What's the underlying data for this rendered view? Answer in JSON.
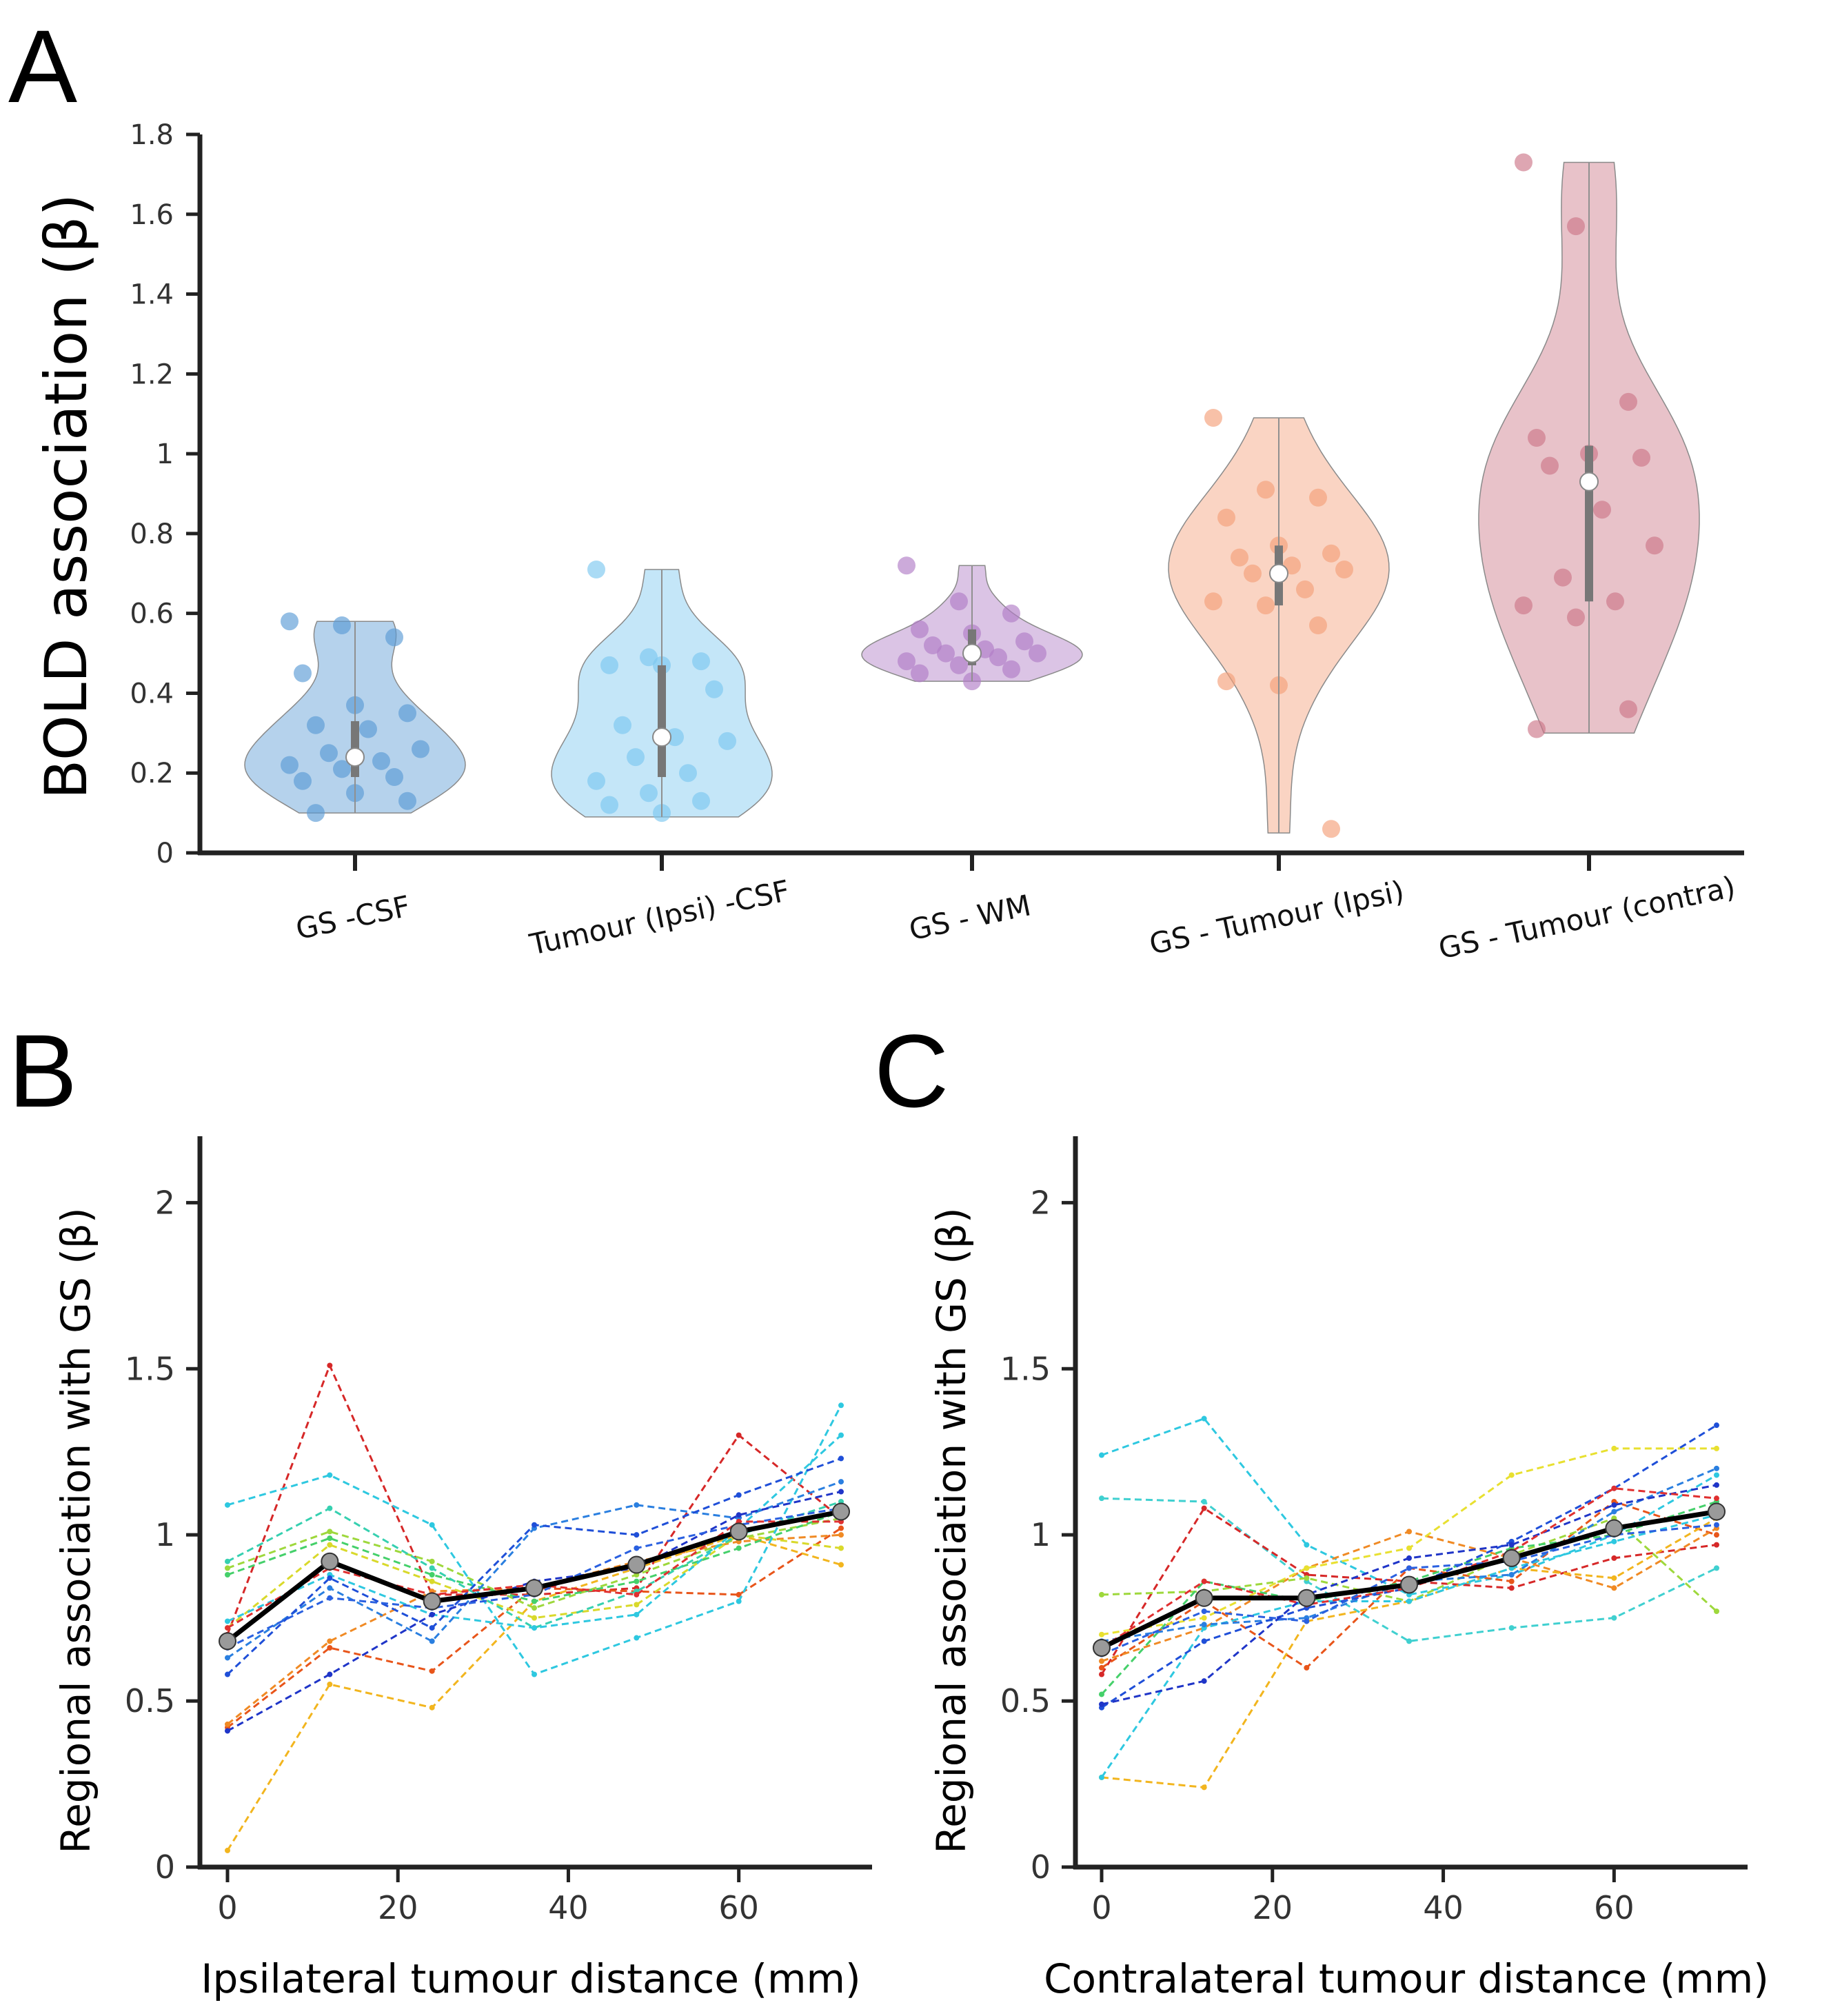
{
  "panels": {
    "a": "A",
    "b": "B",
    "c": "C"
  },
  "chart_data": [
    {
      "type": "violin",
      "panel": "A",
      "ylabel": "BOLD association (β)",
      "ylim": [
        0,
        1.8
      ],
      "yticks": [
        "0",
        "0.2",
        "0.4",
        "0.6",
        "0.8",
        "1",
        "1.2",
        "1.4",
        "1.6",
        "1.8"
      ],
      "groups": [
        {
          "label": "GS -CSF",
          "color": "#5b9bd5",
          "median": 0.24,
          "q1": 0.19,
          "q3": 0.33,
          "min": 0.1,
          "max": 0.58,
          "points": [
            0.58,
            0.57,
            0.54,
            0.45,
            0.37,
            0.35,
            0.32,
            0.31,
            0.26,
            0.25,
            0.23,
            0.22,
            0.21,
            0.19,
            0.18,
            0.15,
            0.13,
            0.1
          ]
        },
        {
          "label": "Tumour (Ipsi) -CSF",
          "color": "#7cc8ef",
          "median": 0.29,
          "q1": 0.19,
          "q3": 0.47,
          "min": 0.09,
          "max": 0.71,
          "points": [
            0.71,
            0.49,
            0.48,
            0.47,
            0.47,
            0.41,
            0.32,
            0.29,
            0.28,
            0.24,
            0.2,
            0.18,
            0.15,
            0.13,
            0.12,
            0.1
          ]
        },
        {
          "label": "GS - WM",
          "color": "#b07cc6",
          "median": 0.5,
          "q1": 0.47,
          "q3": 0.56,
          "min": 0.43,
          "max": 0.72,
          "points": [
            0.72,
            0.63,
            0.6,
            0.56,
            0.55,
            0.53,
            0.52,
            0.51,
            0.5,
            0.5,
            0.49,
            0.48,
            0.47,
            0.46,
            0.45,
            0.43
          ]
        },
        {
          "label": "GS - Tumour (Ipsi)",
          "color": "#f4a07a",
          "median": 0.7,
          "q1": 0.62,
          "q3": 0.77,
          "min": 0.05,
          "max": 1.09,
          "points": [
            1.09,
            0.91,
            0.89,
            0.84,
            0.77,
            0.75,
            0.74,
            0.72,
            0.71,
            0.7,
            0.66,
            0.63,
            0.62,
            0.57,
            0.43,
            0.42,
            0.06
          ]
        },
        {
          "label": "GS - Tumour (contra)",
          "color": "#cc7788",
          "median": 0.93,
          "q1": 0.63,
          "q3": 1.02,
          "min": 0.3,
          "max": 1.73,
          "points": [
            1.73,
            1.57,
            1.13,
            1.04,
            1.0,
            0.99,
            0.97,
            0.86,
            0.77,
            0.69,
            0.63,
            0.62,
            0.59,
            0.36,
            0.31
          ]
        }
      ]
    },
    {
      "type": "line",
      "panel": "B",
      "xlabel": "Ipsilateral tumour distance (mm)",
      "ylabel": "Regional association with GS (β)",
      "xlim": [
        -3,
        76
      ],
      "ylim": [
        0,
        2.2
      ],
      "xticks": [
        "0",
        "20",
        "40",
        "60"
      ],
      "yticks": [
        "0",
        "0.5",
        "1",
        "1.5",
        "2"
      ],
      "x": [
        0,
        12,
        24,
        36,
        48,
        60,
        72
      ],
      "mean": [
        0.68,
        0.92,
        0.8,
        0.84,
        0.91,
        1.01,
        1.07
      ],
      "series": [
        {
          "color": "#d62828",
          "values": [
            0.7,
            1.51,
            0.82,
            0.82,
            0.84,
            1.3,
            1.05
          ]
        },
        {
          "color": "#e8551a",
          "values": [
            0.42,
            0.66,
            0.59,
            0.84,
            0.83,
            0.82,
            1.02
          ]
        },
        {
          "color": "#f08a24",
          "values": [
            0.43,
            0.68,
            0.83,
            0.84,
            0.92,
            0.98,
            1.0
          ]
        },
        {
          "color": "#f2b51e",
          "values": [
            0.05,
            0.55,
            0.48,
            0.8,
            0.9,
            1.0,
            0.91
          ]
        },
        {
          "color": "#d9d92b",
          "values": [
            0.72,
            0.97,
            0.86,
            0.75,
            0.79,
            1.0,
            0.96
          ]
        },
        {
          "color": "#9ed83c",
          "values": [
            0.9,
            1.01,
            0.92,
            0.78,
            0.88,
            0.99,
            1.05
          ]
        },
        {
          "color": "#45d06a",
          "values": [
            0.88,
            0.99,
            0.88,
            0.8,
            0.86,
            0.96,
            1.07
          ]
        },
        {
          "color": "#36d0b0",
          "values": [
            0.92,
            1.08,
            0.9,
            0.72,
            0.83,
            1.0,
            1.1
          ]
        },
        {
          "color": "#2ec8e0",
          "values": [
            1.09,
            1.18,
            1.03,
            0.58,
            0.69,
            0.8,
            1.39
          ]
        },
        {
          "color": "#2ec8e0",
          "values": [
            0.74,
            0.88,
            0.76,
            0.72,
            0.76,
            1.02,
            1.3
          ]
        },
        {
          "color": "#2a7fe0",
          "values": [
            0.63,
            0.84,
            0.68,
            1.02,
            1.09,
            1.05,
            1.16
          ]
        },
        {
          "color": "#1f4fd8",
          "values": [
            0.58,
            0.87,
            0.72,
            1.03,
            1.0,
            1.12,
            1.23
          ]
        },
        {
          "color": "#1f35c8",
          "values": [
            0.41,
            0.58,
            0.76,
            0.86,
            0.9,
            1.06,
            1.13
          ]
        },
        {
          "color": "#2a60e0",
          "values": [
            0.66,
            0.81,
            0.78,
            0.82,
            0.96,
            1.03,
            1.08
          ]
        },
        {
          "color": "#e03030",
          "values": [
            0.72,
            0.9,
            0.82,
            0.85,
            0.82,
            1.04,
            1.04
          ]
        }
      ]
    },
    {
      "type": "line",
      "panel": "C",
      "xlabel": "Contralateral tumour distance (mm)",
      "ylabel": "Regional association with GS (β)",
      "xlim": [
        -3,
        76
      ],
      "ylim": [
        0,
        2.2
      ],
      "xticks": [
        "0",
        "20",
        "40",
        "60"
      ],
      "yticks": [
        "0",
        "0.5",
        "1",
        "1.5",
        "2"
      ],
      "x": [
        0,
        12,
        24,
        36,
        48,
        60,
        72
      ],
      "mean": [
        0.66,
        0.81,
        0.81,
        0.85,
        0.93,
        1.02,
        1.07
      ],
      "series": [
        {
          "color": "#2ec8e0",
          "values": [
            1.24,
            1.35,
            0.97,
            0.82,
            0.88,
            1.0,
            1.18
          ]
        },
        {
          "color": "#40d0d0",
          "values": [
            1.11,
            1.1,
            0.86,
            0.68,
            0.72,
            0.75,
            0.9
          ]
        },
        {
          "color": "#d62828",
          "values": [
            0.58,
            1.08,
            0.88,
            0.86,
            0.84,
            0.93,
            0.97
          ]
        },
        {
          "color": "#e8551a",
          "values": [
            0.6,
            0.8,
            0.6,
            0.9,
            0.86,
            1.1,
            1.0
          ]
        },
        {
          "color": "#f08a24",
          "values": [
            0.62,
            0.72,
            0.9,
            1.01,
            0.93,
            0.84,
            1.02
          ]
        },
        {
          "color": "#f2b51e",
          "values": [
            0.27,
            0.24,
            0.74,
            0.8,
            0.9,
            0.87,
            1.05
          ]
        },
        {
          "color": "#e8e030",
          "values": [
            0.7,
            0.75,
            0.9,
            0.96,
            1.18,
            1.26,
            1.26
          ]
        },
        {
          "color": "#9ed83c",
          "values": [
            0.82,
            0.83,
            0.87,
            0.8,
            0.94,
            1.05,
            0.77
          ]
        },
        {
          "color": "#45d06a",
          "values": [
            0.52,
            0.86,
            0.8,
            0.86,
            0.96,
            1.0,
            1.1
          ]
        },
        {
          "color": "#2ec8e0",
          "values": [
            0.27,
            0.72,
            0.8,
            0.8,
            0.9,
            0.98,
            1.06
          ]
        },
        {
          "color": "#2a7fe0",
          "values": [
            0.68,
            0.73,
            0.75,
            0.86,
            0.88,
            1.07,
            1.2
          ]
        },
        {
          "color": "#1f4fd8",
          "values": [
            0.48,
            0.68,
            0.78,
            0.84,
            0.98,
            1.14,
            1.33
          ]
        },
        {
          "color": "#1f35c8",
          "values": [
            0.49,
            0.56,
            0.82,
            0.93,
            0.97,
            1.09,
            1.15
          ]
        },
        {
          "color": "#e03030",
          "values": [
            0.66,
            0.86,
            0.79,
            0.84,
            0.95,
            1.14,
            1.11
          ]
        },
        {
          "color": "#2a60e0",
          "values": [
            0.64,
            0.77,
            0.74,
            0.9,
            0.92,
            1.0,
            1.03
          ]
        }
      ]
    }
  ]
}
